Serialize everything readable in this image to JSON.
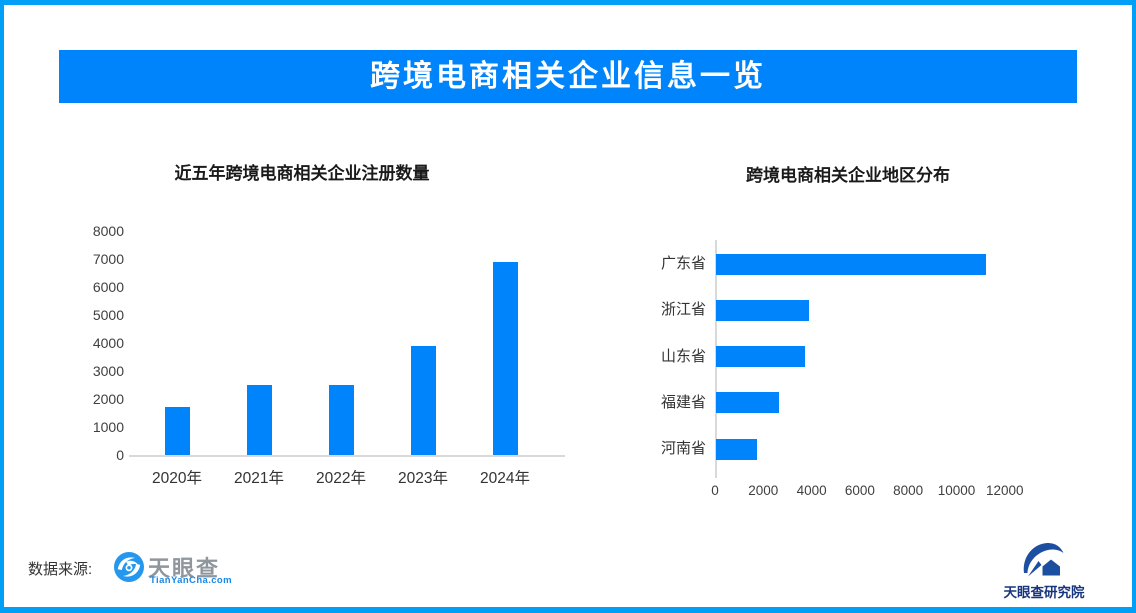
{
  "page": {
    "frame_color": "#01A0F6",
    "background": "#FFFFFF",
    "accent": "#0084FB"
  },
  "header": {
    "title": "跨境电商相关企业信息一览",
    "bg_color": "#0084FB",
    "text_color": "#FFFFFF"
  },
  "chart_data": [
    {
      "type": "bar",
      "orientation": "vertical",
      "title": "近五年跨境电商相关企业注册数量",
      "categories": [
        "2020年",
        "2021年",
        "2022年",
        "2023年",
        "2024年"
      ],
      "values": [
        1700,
        2500,
        2500,
        3900,
        6900
      ],
      "xlabel": "",
      "ylabel": "",
      "ylim": [
        0,
        8000
      ],
      "yticks": [
        0,
        1000,
        2000,
        3000,
        4000,
        5000,
        6000,
        7000,
        8000
      ],
      "grid": false,
      "legend": "none",
      "bar_color": "#0084FB",
      "axis_color": "#D9D9D9"
    },
    {
      "type": "bar",
      "orientation": "horizontal",
      "title": "跨境电商相关企业地区分布",
      "categories": [
        "广东省",
        "浙江省",
        "山东省",
        "福建省",
        "河南省"
      ],
      "values": [
        11200,
        3850,
        3700,
        2600,
        1700
      ],
      "xlabel": "",
      "ylabel": "",
      "xlim": [
        0,
        12000
      ],
      "xticks": [
        0,
        2000,
        4000,
        6000,
        8000,
        10000,
        12000
      ],
      "grid": false,
      "legend": "none",
      "bar_color": "#0084FB",
      "axis_color": "#D9D9D9"
    }
  ],
  "footer": {
    "source_label": "数据来源:",
    "tianyancha": {
      "icon": "tianyancha-eye-icon",
      "name": "天眼查",
      "domain": "TianYanCha.com"
    },
    "institute": {
      "icon": "tianyancha-institute-icon",
      "label": "天眼查研究院"
    }
  }
}
